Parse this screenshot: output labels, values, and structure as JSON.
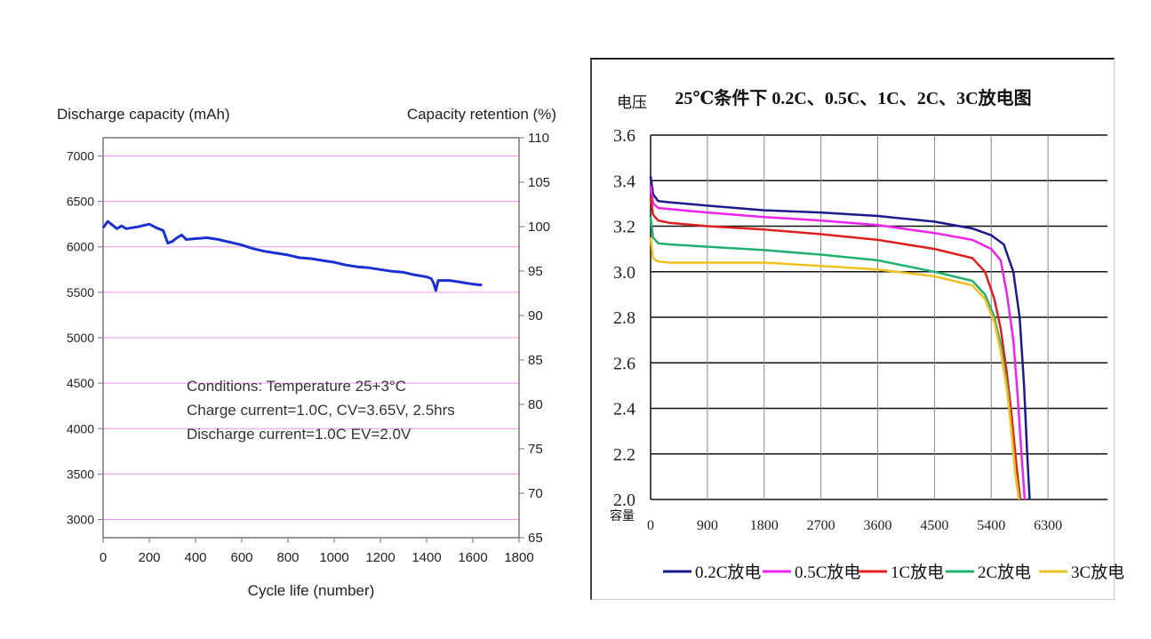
{
  "chart_data": [
    {
      "type": "line",
      "title": "",
      "ylabel": "Discharge capacity (mAh)",
      "y2label": "Capacity retention (%)",
      "xlabel": "Cycle life (number)",
      "xlim": [
        0,
        1800
      ],
      "ylim": [
        2800,
        7200
      ],
      "y2lim": [
        65,
        110
      ],
      "xticks": [
        "0",
        "200",
        "400",
        "600",
        "800",
        "1000",
        "1200",
        "1400",
        "1600",
        "1800"
      ],
      "yticks": [
        "3000",
        "3500",
        "4000",
        "4500",
        "5000",
        "5500",
        "6000",
        "6500",
        "7000"
      ],
      "y2ticks": [
        "65",
        "70",
        "75",
        "80",
        "85",
        "90",
        "95",
        "100",
        "105",
        "110"
      ],
      "annotation": [
        "Conditions: Temperature 25+3°C",
        "Charge current=1.0C, CV=3.65V, 2.5hrs",
        "Discharge current=1.0C EV=2.0V"
      ],
      "series": [
        {
          "name": "Discharge capacity",
          "color": "#1a2fd4",
          "x": [
            0,
            20,
            40,
            60,
            80,
            100,
            150,
            200,
            230,
            260,
            280,
            300,
            320,
            340,
            360,
            400,
            450,
            500,
            550,
            600,
            650,
            700,
            750,
            800,
            850,
            900,
            950,
            1000,
            1050,
            1100,
            1150,
            1200,
            1250,
            1300,
            1350,
            1400,
            1420,
            1430,
            1440,
            1450,
            1500,
            1550,
            1600,
            1640
          ],
          "y": [
            6210,
            6280,
            6240,
            6200,
            6230,
            6200,
            6220,
            6250,
            6210,
            6180,
            6040,
            6060,
            6100,
            6130,
            6080,
            6090,
            6100,
            6080,
            6050,
            6020,
            5980,
            5950,
            5930,
            5910,
            5880,
            5870,
            5850,
            5830,
            5800,
            5780,
            5770,
            5750,
            5730,
            5720,
            5690,
            5670,
            5650,
            5600,
            5520,
            5630,
            5630,
            5610,
            5590,
            5580
          ]
        }
      ]
    },
    {
      "type": "line",
      "title": "25℃条件下 0.2C、0.5C、1C、2C、3C放电图",
      "ylabel": "电压",
      "xlabel": "容量",
      "xlim": [
        0,
        7200
      ],
      "ylim": [
        2.0,
        3.6
      ],
      "xticks": [
        "0",
        "900",
        "1800",
        "2700",
        "3600",
        "4500",
        "5400",
        "6300"
      ],
      "yticks": [
        "2.0",
        "2.2",
        "2.4",
        "2.6",
        "2.8",
        "3.0",
        "3.2",
        "3.4",
        "3.6"
      ],
      "series": [
        {
          "name": "0.2C放电",
          "color": "#1a1a8c",
          "x": [
            0,
            40,
            120,
            300,
            900,
            1800,
            2700,
            3600,
            4500,
            5100,
            5400,
            5600,
            5750,
            5850,
            5920,
            5970,
            6010
          ],
          "y": [
            3.42,
            3.34,
            3.31,
            3.305,
            3.29,
            3.27,
            3.26,
            3.245,
            3.22,
            3.19,
            3.16,
            3.12,
            3.0,
            2.8,
            2.5,
            2.2,
            2.0
          ]
        },
        {
          "name": "0.5C放电",
          "color": "#ee22ee",
          "x": [
            0,
            40,
            120,
            300,
            900,
            1800,
            2700,
            3600,
            4500,
            5100,
            5400,
            5550,
            5650,
            5750,
            5820,
            5880,
            5930
          ],
          "y": [
            3.38,
            3.3,
            3.28,
            3.275,
            3.26,
            3.24,
            3.225,
            3.205,
            3.17,
            3.14,
            3.1,
            3.05,
            2.9,
            2.7,
            2.45,
            2.2,
            2.0
          ]
        },
        {
          "name": "1C放电",
          "color": "#e02020",
          "x": [
            0,
            40,
            120,
            300,
            900,
            1800,
            2700,
            3600,
            4500,
            5100,
            5300,
            5450,
            5550,
            5650,
            5730,
            5800,
            5860
          ],
          "y": [
            3.33,
            3.25,
            3.225,
            3.215,
            3.2,
            3.185,
            3.165,
            3.14,
            3.1,
            3.06,
            3.0,
            2.88,
            2.75,
            2.55,
            2.35,
            2.15,
            2.0
          ]
        },
        {
          "name": "2C放电",
          "color": "#22b070",
          "x": [
            0,
            40,
            120,
            300,
            900,
            1800,
            2700,
            3600,
            4500,
            5100,
            5300,
            5450,
            5550,
            5650,
            5720,
            5780,
            5840
          ],
          "y": [
            3.24,
            3.15,
            3.125,
            3.12,
            3.11,
            3.095,
            3.075,
            3.05,
            3.0,
            2.96,
            2.9,
            2.8,
            2.68,
            2.5,
            2.3,
            2.12,
            2.0
          ]
        },
        {
          "name": "3C放电",
          "color": "#f0c020",
          "x": [
            0,
            40,
            120,
            300,
            900,
            1800,
            2700,
            3600,
            4500,
            5100,
            5300,
            5450,
            5550,
            5650,
            5720,
            5780,
            5840
          ],
          "y": [
            3.15,
            3.06,
            3.045,
            3.04,
            3.04,
            3.04,
            3.025,
            3.01,
            2.98,
            2.94,
            2.88,
            2.78,
            2.65,
            2.48,
            2.3,
            2.12,
            2.0
          ]
        }
      ]
    }
  ]
}
